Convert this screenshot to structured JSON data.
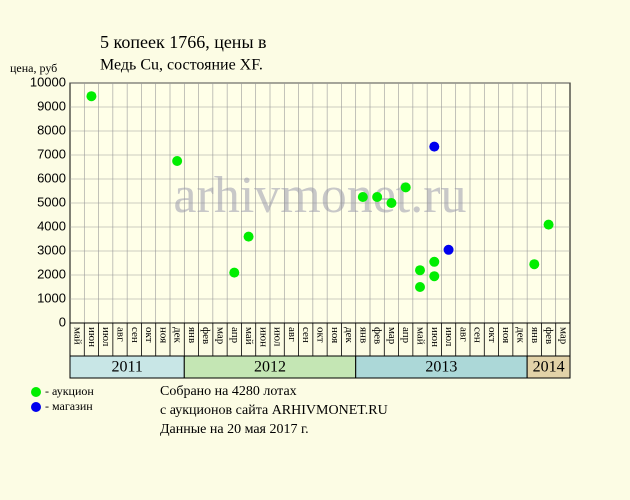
{
  "chart_data": {
    "type": "scatter",
    "title": "5 копеек 1766, цены в",
    "subtitle": "Медь Cu, состояние XF.",
    "y_label": "цена, руб",
    "watermark": "arhivmonet.ru",
    "categories": [
      "май",
      "июн",
      "июл",
      "авг",
      "сен",
      "окт",
      "ноя",
      "дек",
      "янв",
      "фев",
      "мар",
      "апр",
      "май",
      "июн",
      "июл",
      "авг",
      "сен",
      "окт",
      "ноя",
      "дек",
      "янв",
      "фев",
      "мар",
      "апр",
      "май",
      "июн",
      "июл",
      "авг",
      "сен",
      "окт",
      "ноя",
      "дек",
      "янв",
      "фев",
      "мар"
    ],
    "xlim": [
      "2011-05",
      "2014-03"
    ],
    "years": [
      {
        "label": "2011",
        "color": "#c8e6e6"
      },
      {
        "label": "2012",
        "color": "#c4e6b4"
      },
      {
        "label": "2013",
        "color": "#acd8d8"
      },
      {
        "label": "2014",
        "color": "#e2d2a8"
      }
    ],
    "ylim": [
      0,
      10000
    ],
    "yticks": [
      0,
      1000,
      2000,
      3000,
      4000,
      5000,
      6000,
      7000,
      8000,
      9000,
      10000
    ],
    "grid": true,
    "series": [
      {
        "name": "- аукцион",
        "color": "#00ee00",
        "x": [
          "2011-06",
          "2011-12",
          "2012-04",
          "2012-05",
          "2013-01",
          "2013-02",
          "2013-03",
          "2013-04",
          "2013-05",
          "2013-05",
          "2013-06",
          "2013-06",
          "2014-01",
          "2014-02"
        ],
        "values": [
          9450,
          6750,
          2100,
          3600,
          5250,
          5250,
          5000,
          5650,
          2200,
          1500,
          2550,
          1950,
          2450,
          4100
        ]
      },
      {
        "name": "- магазин",
        "color": "#0000ee",
        "x": [
          "2013-06",
          "2013-07"
        ],
        "values": [
          7350,
          3050
        ]
      }
    ],
    "notes": [
      "Собрано на 4280 лотах",
      "с аукционов сайта ARHIVMONET.RU",
      "Данные на 20 мая 2017 г."
    ]
  }
}
